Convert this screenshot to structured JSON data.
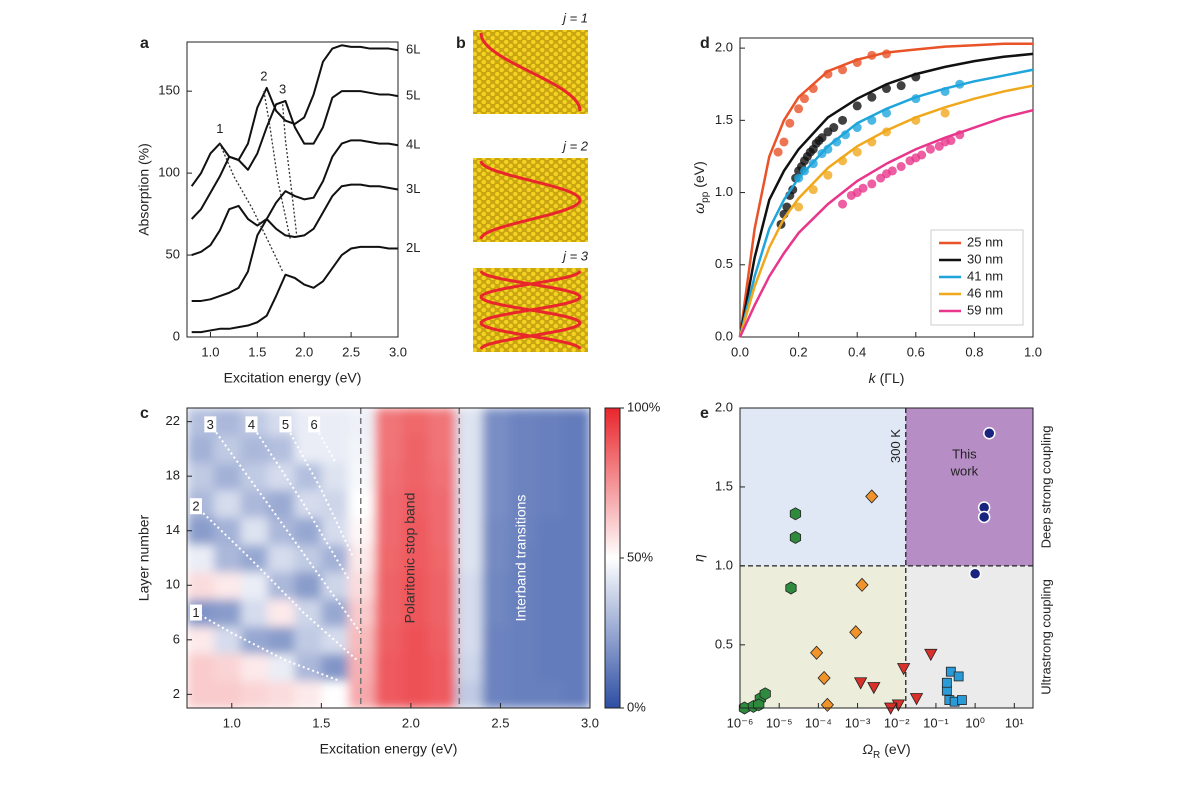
{
  "chart_data": [
    {
      "type": "line",
      "label": "a",
      "xlabel": "Excitation energy (eV)",
      "ylabel": "Absorption (%)",
      "x": [
        0.8,
        0.9,
        1.0,
        1.1,
        1.2,
        1.3,
        1.4,
        1.5,
        1.6,
        1.7,
        1.8,
        1.9,
        2.0,
        2.1,
        2.2,
        2.3,
        2.4,
        2.5,
        2.6,
        2.7,
        2.8,
        2.9,
        3.0
      ],
      "series": [
        {
          "name": "2L",
          "color": "#111111",
          "values": [
            3,
            3,
            4,
            5,
            5,
            6,
            7,
            9,
            13,
            25,
            38,
            36,
            32,
            30,
            34,
            42,
            50,
            54,
            55,
            55,
            55,
            54,
            54
          ]
        },
        {
          "name": "3L",
          "color": "#111111",
          "values": [
            22,
            22,
            23,
            25,
            27,
            30,
            40,
            62,
            72,
            66,
            62,
            61,
            62,
            66,
            76,
            86,
            92,
            93,
            93,
            92,
            92,
            91,
            90
          ]
        },
        {
          "name": "4L",
          "color": "#111111",
          "values": [
            50,
            52,
            56,
            65,
            78,
            80,
            72,
            68,
            72,
            82,
            89,
            86,
            84,
            85,
            95,
            110,
            118,
            120,
            120,
            119,
            118,
            118,
            117
          ]
        },
        {
          "name": "5L",
          "color": "#111111",
          "values": [
            72,
            78,
            88,
            98,
            110,
            108,
            102,
            112,
            128,
            142,
            144,
            128,
            118,
            118,
            128,
            146,
            150,
            150,
            150,
            149,
            148,
            148,
            147
          ]
        },
        {
          "name": "6L",
          "color": "#111111",
          "values": [
            92,
            100,
            112,
            118,
            110,
            108,
            118,
            140,
            152,
            138,
            132,
            130,
            134,
            148,
            168,
            176,
            178,
            177,
            177,
            176,
            176,
            176,
            175
          ]
        }
      ],
      "guides": [
        {
          "label": "1",
          "x": [
            1.1,
            1.25,
            1.45,
            1.62,
            1.77
          ],
          "y": [
            118,
            98,
            78,
            58,
            40
          ]
        },
        {
          "label": "2",
          "x": [
            1.57,
            1.63,
            1.72,
            1.85
          ],
          "y": [
            150,
            130,
            95,
            60
          ]
        },
        {
          "label": "3",
          "x": [
            1.77,
            1.8,
            1.86,
            1.92
          ],
          "y": [
            142,
            120,
            92,
            62
          ]
        }
      ],
      "xlim": [
        0.75,
        3.0
      ],
      "xticks": [
        {
          "value": 1,
          "label": "1.0"
        },
        1.5,
        {
          "value": 2,
          "label": "2.0"
        },
        2.5,
        {
          "value": 3,
          "label": "3.0"
        }
      ],
      "ylim": [
        0,
        180
      ],
      "yticks": [
        0,
        50,
        100,
        150
      ]
    },
    {
      "type": "diagram",
      "label": "b",
      "panels": [
        "j = 1",
        "j = 2",
        "j = 3"
      ],
      "wave_color": "#e8262c"
    },
    {
      "type": "heatmap",
      "label": "c",
      "xlabel": "Excitation energy (eV)",
      "ylabel": "Layer number",
      "x_edges": [
        0.75,
        0.9,
        1.05,
        1.2,
        1.35,
        1.5,
        1.65,
        1.8,
        1.95,
        2.1,
        2.25,
        2.4,
        2.55,
        2.7,
        2.85,
        3.0
      ],
      "y_edges": [
        1,
        3,
        5,
        7,
        9,
        11,
        13,
        15,
        17,
        19,
        21,
        23
      ],
      "z": [
        [
          62,
          62,
          60,
          58,
          55,
          50,
          70,
          88,
          90,
          88,
          35,
          15,
          14,
          14,
          13
        ],
        [
          62,
          60,
          55,
          45,
          30,
          20,
          68,
          88,
          90,
          88,
          38,
          15,
          14,
          13,
          13
        ],
        [
          55,
          40,
          25,
          22,
          35,
          40,
          66,
          87,
          90,
          87,
          40,
          15,
          14,
          13,
          13
        ],
        [
          20,
          22,
          40,
          55,
          38,
          25,
          62,
          86,
          89,
          86,
          40,
          16,
          14,
          13,
          13
        ],
        [
          58,
          55,
          45,
          30,
          22,
          38,
          58,
          86,
          89,
          86,
          40,
          16,
          14,
          13,
          13
        ],
        [
          45,
          30,
          25,
          40,
          35,
          28,
          55,
          85,
          88,
          85,
          42,
          17,
          14,
          13,
          13
        ],
        [
          22,
          28,
          42,
          30,
          25,
          40,
          52,
          84,
          88,
          84,
          42,
          17,
          15,
          13,
          13
        ],
        [
          30,
          40,
          30,
          26,
          40,
          38,
          50,
          84,
          87,
          84,
          42,
          18,
          15,
          14,
          13
        ],
        [
          35,
          28,
          35,
          40,
          32,
          42,
          48,
          83,
          86,
          83,
          42,
          18,
          15,
          14,
          13
        ],
        [
          28,
          35,
          30,
          32,
          45,
          45,
          47,
          82,
          86,
          82,
          42,
          18,
          15,
          14,
          13
        ],
        [
          32,
          30,
          35,
          40,
          45,
          45,
          46,
          82,
          85,
          82,
          42,
          18,
          15,
          14,
          13
        ]
      ],
      "colorscale": [
        "#2d4ea3",
        "#ffffff",
        "#e8262c"
      ],
      "zlim": [
        0,
        100
      ],
      "zticks": [
        {
          "value": 0,
          "label": "0%"
        },
        {
          "value": 50,
          "label": "50%"
        },
        {
          "value": 100,
          "label": "100%"
        }
      ],
      "modes": [
        {
          "label": "1",
          "x": [
            0.8,
            1.0,
            1.3,
            1.6
          ],
          "y": [
            8,
            6.5,
            4.5,
            3
          ]
        },
        {
          "label": "2",
          "x": [
            0.8,
            1.1,
            1.4,
            1.7
          ],
          "y": [
            15.8,
            12,
            8,
            4.5
          ]
        },
        {
          "label": "3",
          "x": [
            0.88,
            1.2,
            1.5,
            1.72
          ],
          "y": [
            21.8,
            16,
            10.5,
            6.5
          ]
        },
        {
          "label": "4",
          "x": [
            1.11,
            1.4,
            1.65
          ],
          "y": [
            21.8,
            16,
            10.5
          ]
        },
        {
          "label": "5",
          "x": [
            1.3,
            1.5,
            1.68
          ],
          "y": [
            21.8,
            17,
            12
          ]
        },
        {
          "label": "6",
          "x": [
            1.46,
            1.58
          ],
          "y": [
            21.8,
            19
          ]
        }
      ],
      "dividers": [
        1.72,
        2.27
      ],
      "band_labels": [
        "Polaritonic stop band",
        "Interband transitions"
      ],
      "xlim": [
        0.75,
        3.0
      ],
      "xticks": [
        {
          "value": 1,
          "label": "1.0"
        },
        1.5,
        {
          "value": 2,
          "label": "2.0"
        },
        2.5,
        {
          "value": 3,
          "label": "3.0"
        }
      ],
      "ylim": [
        1,
        23
      ],
      "yticks": [
        2,
        6,
        10,
        14,
        18,
        22
      ]
    },
    {
      "type": "scatter-fit",
      "label": "d",
      "xlabel": [
        "k",
        "(ΓL)"
      ],
      "ylabel": [
        "ω",
        "pp",
        "(eV)"
      ],
      "fit_x": [
        0,
        0.05,
        0.1,
        0.15,
        0.2,
        0.3,
        0.4,
        0.5,
        0.6,
        0.7,
        0.8,
        0.9,
        1.0
      ],
      "series": [
        {
          "name": "25 nm",
          "color": "#ea5228",
          "fit": [
            0,
            0.75,
            1.25,
            1.5,
            1.66,
            1.84,
            1.92,
            1.97,
            1.99,
            2.01,
            2.02,
            2.03,
            2.03
          ],
          "x": [
            0.13,
            0.15,
            0.17,
            0.2,
            0.22,
            0.25,
            0.3,
            0.35,
            0.4,
            0.45,
            0.5
          ],
          "values": [
            1.28,
            1.35,
            1.48,
            1.58,
            1.65,
            1.72,
            1.82,
            1.85,
            1.9,
            1.95,
            1.96
          ]
        },
        {
          "name": "30 nm",
          "color": "#111111",
          "fit": [
            0,
            0.55,
            0.95,
            1.15,
            1.3,
            1.52,
            1.65,
            1.75,
            1.82,
            1.87,
            1.91,
            1.94,
            1.96
          ],
          "x": [
            0.14,
            0.15,
            0.16,
            0.17,
            0.18,
            0.19,
            0.2,
            0.21,
            0.22,
            0.23,
            0.24,
            0.25,
            0.26,
            0.27,
            0.28,
            0.3,
            0.32,
            0.35,
            0.4,
            0.45,
            0.5,
            0.55,
            0.6
          ],
          "values": [
            0.78,
            0.85,
            0.9,
            0.98,
            1.02,
            1.1,
            1.15,
            1.18,
            1.22,
            1.25,
            1.28,
            1.3,
            1.34,
            1.36,
            1.38,
            1.42,
            1.45,
            1.5,
            1.6,
            1.66,
            1.72,
            1.74,
            1.8
          ]
        },
        {
          "name": "41 nm",
          "color": "#1ea5dc",
          "fit": [
            0,
            0.42,
            0.75,
            0.95,
            1.1,
            1.32,
            1.48,
            1.58,
            1.66,
            1.72,
            1.77,
            1.81,
            1.85
          ],
          "x": [
            0.2,
            0.22,
            0.25,
            0.28,
            0.3,
            0.33,
            0.36,
            0.4,
            0.45,
            0.5,
            0.6,
            0.7,
            0.75
          ],
          "values": [
            1.1,
            1.15,
            1.2,
            1.27,
            1.3,
            1.35,
            1.4,
            1.45,
            1.5,
            1.55,
            1.65,
            1.7,
            1.75
          ]
        },
        {
          "name": "46 nm",
          "color": "#f0a81c",
          "fit": [
            0,
            0.35,
            0.62,
            0.82,
            0.96,
            1.17,
            1.32,
            1.43,
            1.52,
            1.59,
            1.65,
            1.7,
            1.74
          ],
          "x": [
            0.2,
            0.25,
            0.3,
            0.35,
            0.4,
            0.45,
            0.5,
            0.6,
            0.7
          ],
          "values": [
            0.9,
            1.02,
            1.12,
            1.22,
            1.28,
            1.35,
            1.42,
            1.5,
            1.55
          ]
        },
        {
          "name": "59 nm",
          "color": "#e8368c",
          "fit": [
            0,
            0.22,
            0.42,
            0.58,
            0.72,
            0.92,
            1.08,
            1.2,
            1.3,
            1.38,
            1.45,
            1.52,
            1.57
          ],
          "x": [
            0.35,
            0.38,
            0.4,
            0.42,
            0.45,
            0.48,
            0.5,
            0.52,
            0.55,
            0.58,
            0.6,
            0.62,
            0.65,
            0.68,
            0.7,
            0.72,
            0.75
          ],
          "values": [
            0.92,
            0.98,
            1.0,
            1.03,
            1.06,
            1.1,
            1.13,
            1.15,
            1.18,
            1.22,
            1.24,
            1.26,
            1.3,
            1.32,
            1.35,
            1.36,
            1.4
          ]
        }
      ],
      "legend": "lower right",
      "xlim": [
        0,
        1.0
      ],
      "xticks": [
        {
          "value": 0,
          "label": "0.0"
        },
        0.2,
        0.4,
        0.6,
        0.8,
        {
          "value": 1,
          "label": "1.0"
        }
      ],
      "ylim": [
        0,
        2.07
      ],
      "yticks": [
        {
          "value": 0,
          "label": "0.0"
        },
        0.5,
        {
          "value": 1,
          "label": "1.0"
        },
        1.5,
        {
          "value": 2,
          "label": "2.0"
        }
      ]
    },
    {
      "type": "scatter",
      "label": "e",
      "xlabel": [
        "Ω",
        "R",
        "(eV)"
      ],
      "ylabel": "η",
      "xlog": true,
      "series": [
        {
          "marker": "hexagon",
          "color": "#2e8b3e",
          "x": [
            2.6e-05,
            2.6e-05,
            2e-05,
            1.3e-06,
            2.2e-06,
            3.3e-06,
            4.4e-06,
            3e-06
          ],
          "values": [
            1.33,
            1.18,
            0.86,
            0.1,
            0.11,
            0.16,
            0.19,
            0.12
          ]
        },
        {
          "marker": "diamond",
          "color": "#f0932b",
          "x": [
            0.0023,
            0.0013,
            0.0009,
            9e-05,
            0.00014,
            0.00017
          ],
          "values": [
            1.44,
            0.88,
            0.58,
            0.45,
            0.29,
            0.12
          ]
        },
        {
          "marker": "triangle",
          "color": "#d8302a",
          "x": [
            0.0012,
            0.0026,
            0.015,
            0.011,
            0.007,
            0.032,
            0.074
          ],
          "values": [
            0.26,
            0.23,
            0.35,
            0.12,
            0.1,
            0.16,
            0.44
          ]
        },
        {
          "marker": "square",
          "color": "#2b9bd8",
          "x": [
            0.24,
            0.38,
            0.19,
            0.22,
            0.3,
            0.46,
            0.19
          ],
          "values": [
            0.33,
            0.3,
            0.21,
            0.15,
            0.14,
            0.15,
            0.26
          ]
        },
        {
          "marker": "circle",
          "color": "#1a237e",
          "x": [
            2.3,
            1.7,
            1.7,
            1.0
          ],
          "values": [
            1.84,
            1.37,
            1.31,
            0.95
          ]
        }
      ],
      "region_colors": [
        "#dfe8f4",
        "#b78dc5",
        "#eceedb",
        "#ebebeb"
      ],
      "divider_x": 0.017,
      "divider_y": 1,
      "divider_label": "300 K",
      "this_work": [
        "This",
        "work"
      ],
      "region_labels": [
        "Deep strong coupling",
        "Ultrastrong coupling"
      ],
      "xlim": [
        1e-06,
        30
      ],
      "xticks": [
        {
          "value": 1e-06,
          "label": "10⁻⁶"
        },
        {
          "value": 1e-05,
          "label": "10⁻⁵"
        },
        {
          "value": 0.0001,
          "label": "10⁻⁴"
        },
        {
          "value": 0.001,
          "label": "10⁻³"
        },
        {
          "value": 0.01,
          "label": "10⁻²"
        },
        {
          "value": 0.1,
          "label": "10⁻¹"
        },
        {
          "value": 1,
          "label": "10⁰"
        },
        {
          "value": 10,
          "label": "10¹"
        }
      ],
      "ylim": [
        0.1,
        2.0
      ],
      "yticks": [
        0.5,
        {
          "value": 1,
          "label": "1.0"
        },
        1.5,
        {
          "value": 2,
          "label": "2.0"
        }
      ]
    }
  ]
}
